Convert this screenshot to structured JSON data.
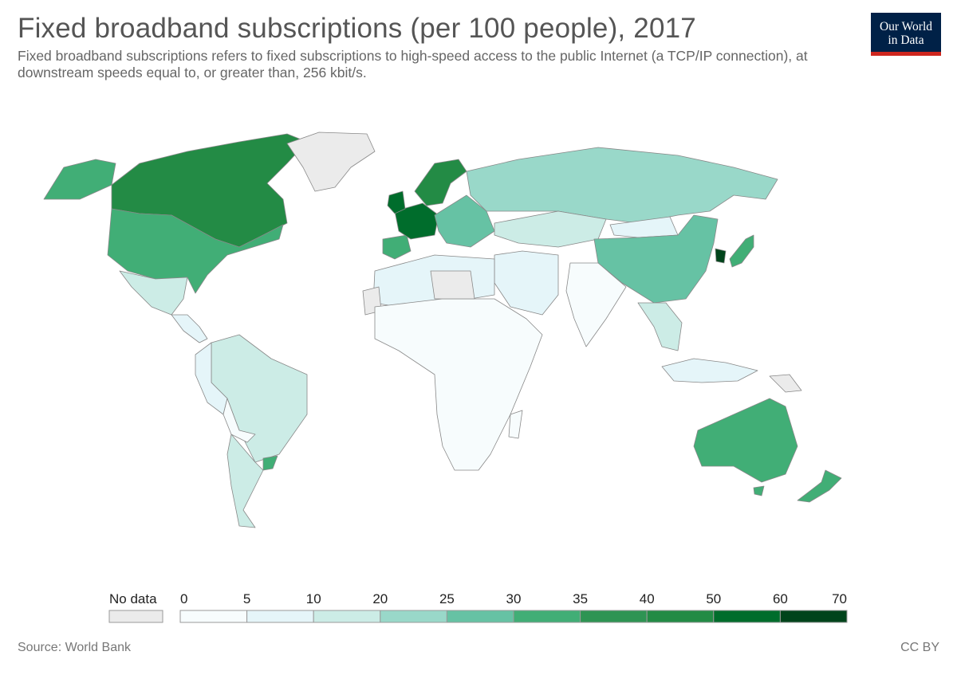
{
  "header": {
    "title": "Fixed broadband subscriptions (per 100 people), 2017",
    "subtitle": "Fixed broadband subscriptions refers to fixed subscriptions to high-speed access to the public Internet (a TCP/IP connection), at downstream speeds equal to, or greater than, 256 kbit/s."
  },
  "logo": {
    "line1": "Our World",
    "line2": "in Data"
  },
  "footer": {
    "source": "Source: World Bank",
    "license": "CC BY"
  },
  "legend": {
    "no_data_label": "No data",
    "no_data_color": "#ebebeb",
    "bins": [
      {
        "from": 0,
        "to": 5,
        "color": "#f7fcfd"
      },
      {
        "from": 5,
        "to": 10,
        "color": "#e5f5f9"
      },
      {
        "from": 10,
        "to": 20,
        "color": "#ccece6"
      },
      {
        "from": 20,
        "to": 25,
        "color": "#99d8c9"
      },
      {
        "from": 25,
        "to": 30,
        "color": "#66c2a4"
      },
      {
        "from": 30,
        "to": 35,
        "color": "#41ae76"
      },
      {
        "from": 35,
        "to": 40,
        "color": "#2e9453"
      },
      {
        "from": 40,
        "to": 50,
        "color": "#238b45"
      },
      {
        "from": 50,
        "to": 60,
        "color": "#006d2c"
      },
      {
        "from": 60,
        "to": 70,
        "color": "#00441b"
      }
    ],
    "ticks": [
      "0",
      "5",
      "10",
      "20",
      "25",
      "30",
      "35",
      "40",
      "50",
      "60",
      "70"
    ]
  },
  "map_data": {
    "type": "choropleth",
    "indicator": "Fixed broadband subscriptions (per 100 people)",
    "year": 2017,
    "regions": [
      {
        "name": "Canada",
        "color": "#238b45"
      },
      {
        "name": "Greenland",
        "color": "#ebebeb"
      },
      {
        "name": "United States",
        "color": "#41ae76"
      },
      {
        "name": "Mexico",
        "color": "#ccece6"
      },
      {
        "name": "Central America",
        "color": "#e5f5f9"
      },
      {
        "name": "Brazil",
        "color": "#ccece6"
      },
      {
        "name": "Peru",
        "color": "#e5f5f9"
      },
      {
        "name": "Bolivia",
        "color": "#f7fcfd"
      },
      {
        "name": "Argentina",
        "color": "#ccece6"
      },
      {
        "name": "Uruguay",
        "color": "#41ae76"
      },
      {
        "name": "Western Europe",
        "color": "#006d2c"
      },
      {
        "name": "Scandinavia",
        "color": "#238b45"
      },
      {
        "name": "Iberia",
        "color": "#41ae76"
      },
      {
        "name": "Eastern Europe",
        "color": "#66c2a4"
      },
      {
        "name": "Russia",
        "color": "#99d8c9"
      },
      {
        "name": "Kazakhstan",
        "color": "#ccece6"
      },
      {
        "name": "Mongolia",
        "color": "#e5f5f9"
      },
      {
        "name": "China",
        "color": "#66c2a4"
      },
      {
        "name": "South Korea",
        "color": "#00441b"
      },
      {
        "name": "Japan",
        "color": "#41ae76"
      },
      {
        "name": "Middle East",
        "color": "#e5f5f9"
      },
      {
        "name": "India",
        "color": "#f7fcfd"
      },
      {
        "name": "Southeast Asia",
        "color": "#ccece6"
      },
      {
        "name": "Indonesia",
        "color": "#e5f5f9"
      },
      {
        "name": "Papua New Guinea",
        "color": "#ebebeb"
      },
      {
        "name": "Australia",
        "color": "#41ae76"
      },
      {
        "name": "New Zealand",
        "color": "#41ae76"
      },
      {
        "name": "North Africa",
        "color": "#e5f5f9"
      },
      {
        "name": "Sub-Saharan Africa",
        "color": "#f7fcfd"
      },
      {
        "name": "Africa (no data)",
        "color": "#ebebeb"
      }
    ]
  }
}
